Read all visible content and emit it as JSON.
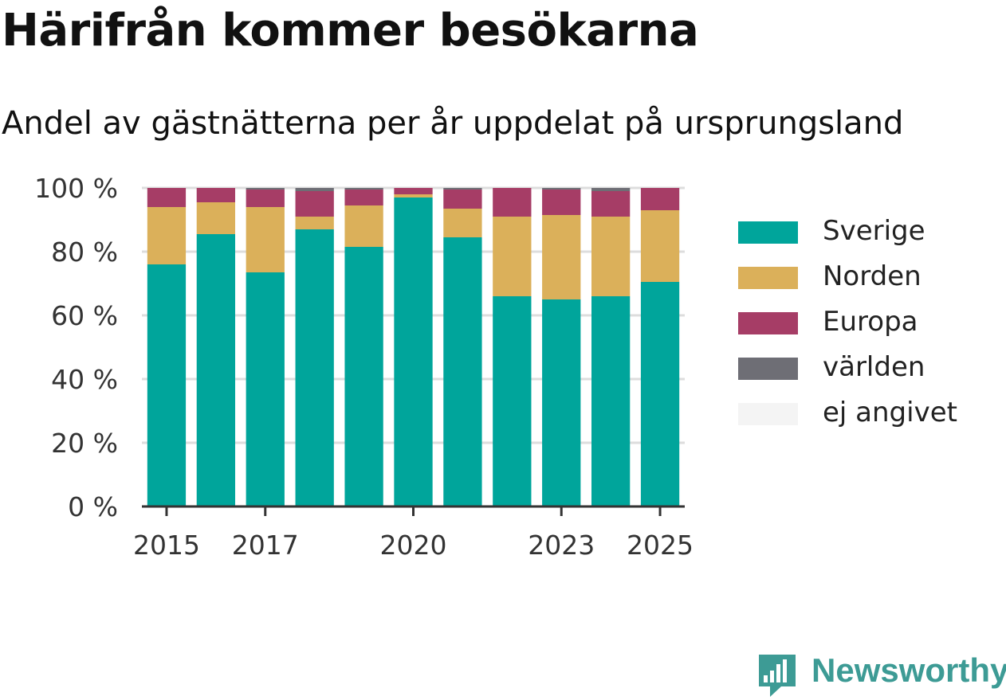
{
  "title": "Härifrån kommer besökarna",
  "subtitle": "Andel av gästnätterna per år uppdelat på ursprungsland",
  "chart_data": {
    "type": "bar",
    "stacked": true,
    "categories": [
      "2015",
      "2016",
      "2017",
      "2018",
      "2019",
      "2020",
      "2021",
      "2022",
      "2023",
      "2024",
      "2025"
    ],
    "x_tick_labels": [
      "2015",
      "2017",
      "2020",
      "2023",
      "2025"
    ],
    "y_ticks": [
      0,
      20,
      40,
      60,
      80,
      100
    ],
    "y_tick_suffix": " %",
    "ylim": [
      0,
      100
    ],
    "grid": "horizontal",
    "legend_position": "right",
    "series": [
      {
        "name": "Sverige",
        "color": "#00a59b",
        "values": [
          76,
          85.5,
          73.5,
          87,
          81.5,
          97,
          84.5,
          66,
          65,
          66,
          70.5
        ]
      },
      {
        "name": "Norden",
        "color": "#dbb05a",
        "values": [
          18,
          10,
          20.5,
          4,
          13,
          1,
          9,
          25,
          26.5,
          25,
          22.5
        ]
      },
      {
        "name": "Europa",
        "color": "#a63d66",
        "values": [
          6,
          4.5,
          5.5,
          8,
          5,
          2,
          6,
          9,
          8,
          8,
          7
        ]
      },
      {
        "name": "världen",
        "color": "#6e6e75",
        "values": [
          0,
          0,
          0.5,
          1,
          0.5,
          0,
          0.5,
          0,
          0.5,
          1,
          0
        ]
      },
      {
        "name": "ej angivet",
        "color": "#f4f4f4",
        "values": [
          0,
          0,
          0,
          0,
          0,
          0,
          0,
          0,
          0,
          0,
          0
        ]
      }
    ]
  },
  "brand": {
    "name": "Newsworthy",
    "icon": "newsworthy-logo-icon",
    "color": "#3d9b95"
  }
}
